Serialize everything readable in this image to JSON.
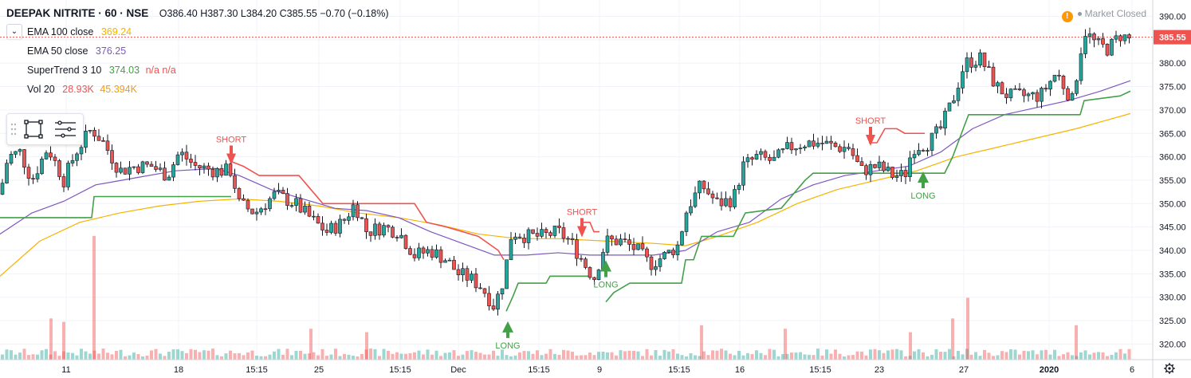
{
  "header": {
    "symbol": "DEEPAK NITRITE · 60 · NSE",
    "ohlc": "O386.40  H387.30  L384.20  C385.55  −0.70 (−0.18%)"
  },
  "status": {
    "text": "Market Closed",
    "color": "#ff9800"
  },
  "indicators": [
    {
      "label": "EMA 100 close",
      "value": "369.24",
      "color": "#f5b301"
    },
    {
      "label": "EMA 50 close",
      "value": "376.25",
      "color": "#7e57c2"
    },
    {
      "label": "SuperTrend 3 10",
      "value": "374.03",
      "extra": "n/a  n/a",
      "color": "#43a047",
      "extra_color": "#ef5350"
    },
    {
      "label": "Vol 20",
      "value": "28.93K",
      "extra": "45.394K",
      "color": "#ef5350",
      "extra_color": "#ff9800"
    }
  ],
  "toolbar": {
    "icons": [
      "grip-icon",
      "rectangle-icon",
      "list-icon"
    ]
  },
  "chart_data": {
    "type": "candlestick",
    "last_price": "385.55",
    "y_range": [
      317.5,
      392.5
    ],
    "y_ticks": [
      "390.00",
      "385.00",
      "380.00",
      "375.00",
      "370.00",
      "365.00",
      "360.00",
      "355.00",
      "350.00",
      "345.00",
      "340.00",
      "335.00",
      "330.00",
      "325.00",
      "320.00"
    ],
    "x_ticks": [
      "11",
      "18",
      "15:15",
      "25",
      "15:15",
      "Dec",
      "15:15",
      "9",
      "15:15",
      "16",
      "15:15",
      "23",
      "27",
      "2020",
      "6"
    ],
    "close_path": [
      [
        0,
        352
      ],
      [
        10,
        360
      ],
      [
        25,
        361
      ],
      [
        40,
        355
      ],
      [
        60,
        362
      ],
      [
        80,
        355
      ],
      [
        95,
        361
      ],
      [
        115,
        366
      ],
      [
        130,
        363
      ],
      [
        150,
        357
      ],
      [
        170,
        358
      ],
      [
        190,
        358
      ],
      [
        210,
        356
      ],
      [
        225,
        361
      ],
      [
        245,
        358
      ],
      [
        270,
        357
      ],
      [
        290,
        357
      ],
      [
        300,
        350
      ],
      [
        320,
        348
      ],
      [
        345,
        352
      ],
      [
        370,
        350
      ],
      [
        395,
        346
      ],
      [
        410,
        344
      ],
      [
        430,
        346
      ],
      [
        445,
        350
      ],
      [
        460,
        344
      ],
      [
        480,
        345
      ],
      [
        500,
        344
      ],
      [
        520,
        339
      ],
      [
        540,
        340
      ],
      [
        560,
        338
      ],
      [
        575,
        335
      ],
      [
        590,
        334
      ],
      [
        605,
        332
      ],
      [
        620,
        328
      ],
      [
        632,
        334
      ],
      [
        642,
        344
      ],
      [
        660,
        343
      ],
      [
        680,
        343
      ],
      [
        700,
        344
      ],
      [
        715,
        342
      ],
      [
        730,
        338
      ],
      [
        745,
        334
      ],
      [
        760,
        342
      ],
      [
        780,
        342
      ],
      [
        800,
        340
      ],
      [
        815,
        337
      ],
      [
        835,
        339
      ],
      [
        850,
        341
      ],
      [
        862,
        349
      ],
      [
        880,
        354
      ],
      [
        900,
        350
      ],
      [
        920,
        351
      ],
      [
        932,
        358
      ],
      [
        950,
        360
      ],
      [
        970,
        359
      ],
      [
        990,
        362
      ],
      [
        1010,
        363
      ],
      [
        1030,
        363
      ],
      [
        1050,
        362
      ],
      [
        1065,
        362
      ],
      [
        1080,
        357
      ],
      [
        1100,
        358
      ],
      [
        1120,
        356
      ],
      [
        1135,
        356
      ],
      [
        1145,
        362
      ],
      [
        1165,
        363
      ],
      [
        1180,
        366
      ],
      [
        1195,
        372
      ],
      [
        1210,
        380
      ],
      [
        1230,
        381
      ],
      [
        1250,
        375
      ],
      [
        1265,
        373
      ],
      [
        1285,
        373
      ],
      [
        1305,
        373
      ],
      [
        1325,
        378
      ],
      [
        1345,
        372
      ],
      [
        1360,
        387
      ],
      [
        1375,
        384
      ],
      [
        1390,
        383
      ],
      [
        1405,
        386
      ],
      [
        1418,
        385
      ]
    ],
    "volume_spikes": [
      [
        118,
        0.36
      ],
      [
        1214,
        0.18
      ],
      [
        64,
        0.12
      ],
      [
        80,
        0.11
      ],
      [
        390,
        0.09
      ],
      [
        460,
        0.08
      ],
      [
        880,
        0.1
      ],
      [
        985,
        0.09
      ],
      [
        1142,
        0.08
      ],
      [
        1195,
        0.12
      ],
      [
        1350,
        0.1
      ]
    ],
    "ema100": [
      [
        0,
        334.5
      ],
      [
        50,
        342
      ],
      [
        100,
        346
      ],
      [
        150,
        348
      ],
      [
        200,
        349.5
      ],
      [
        250,
        350.5
      ],
      [
        300,
        351
      ],
      [
        350,
        350.5
      ],
      [
        400,
        349.5
      ],
      [
        450,
        348
      ],
      [
        500,
        347
      ],
      [
        550,
        345.5
      ],
      [
        600,
        343.5
      ],
      [
        650,
        342.5
      ],
      [
        700,
        342.5
      ],
      [
        760,
        342
      ],
      [
        820,
        341.5
      ],
      [
        860,
        341
      ],
      [
        900,
        343
      ],
      [
        950,
        346
      ],
      [
        1000,
        350
      ],
      [
        1050,
        353
      ],
      [
        1100,
        355
      ],
      [
        1150,
        357
      ],
      [
        1200,
        360
      ],
      [
        1250,
        362
      ],
      [
        1300,
        364
      ],
      [
        1350,
        366
      ],
      [
        1418,
        369.24
      ]
    ],
    "ema50": [
      [
        0,
        343.5
      ],
      [
        40,
        348
      ],
      [
        80,
        350.5
      ],
      [
        120,
        354
      ],
      [
        170,
        355.5
      ],
      [
        220,
        357
      ],
      [
        270,
        357.5
      ],
      [
        300,
        356
      ],
      [
        340,
        353
      ],
      [
        380,
        351
      ],
      [
        420,
        349
      ],
      [
        460,
        348.5
      ],
      [
        500,
        347
      ],
      [
        540,
        344
      ],
      [
        580,
        341.5
      ],
      [
        620,
        339
      ],
      [
        660,
        339
      ],
      [
        700,
        339.5
      ],
      [
        740,
        339
      ],
      [
        780,
        339
      ],
      [
        820,
        339
      ],
      [
        860,
        340
      ],
      [
        900,
        344
      ],
      [
        940,
        346
      ],
      [
        980,
        351
      ],
      [
        1020,
        354
      ],
      [
        1060,
        356
      ],
      [
        1100,
        357
      ],
      [
        1140,
        358
      ],
      [
        1180,
        361
      ],
      [
        1220,
        366
      ],
      [
        1260,
        369
      ],
      [
        1300,
        370.5
      ],
      [
        1340,
        372
      ],
      [
        1380,
        374
      ],
      [
        1418,
        376.25
      ]
    ],
    "supertrend_down": [
      [
        290,
        359
      ],
      [
        305,
        358
      ],
      [
        325,
        356
      ],
      [
        375,
        356
      ],
      [
        385,
        354
      ],
      [
        405,
        350
      ],
      [
        410,
        350
      ],
      [
        520,
        350
      ],
      [
        535,
        346
      ],
      [
        560,
        345
      ],
      [
        580,
        344
      ],
      [
        600,
        343
      ],
      [
        625,
        340
      ],
      [
        632,
        338
      ]
    ],
    "supertrend_down2": [
      [
        730,
        346
      ],
      [
        740,
        346
      ],
      [
        745,
        344
      ],
      [
        752,
        344
      ]
    ],
    "supertrend_down3": [
      [
        1090,
        363
      ],
      [
        1100,
        363
      ],
      [
        1110,
        366
      ],
      [
        1125,
        366
      ],
      [
        1135,
        365
      ],
      [
        1160,
        365
      ]
    ],
    "supertrend_up": [
      [
        0,
        347
      ],
      [
        115,
        347
      ],
      [
        118,
        351.5
      ],
      [
        290,
        351.5
      ]
    ],
    "supertrend_up2": [
      [
        635,
        327
      ],
      [
        643,
        330
      ],
      [
        650,
        333
      ],
      [
        685,
        333
      ],
      [
        690,
        334.5
      ],
      [
        740,
        334.5
      ]
    ],
    "supertrend_up3": [
      [
        760,
        329
      ],
      [
        770,
        331
      ],
      [
        790,
        333
      ],
      [
        855,
        333
      ],
      [
        860,
        338
      ],
      [
        870,
        338
      ],
      [
        880,
        343
      ],
      [
        920,
        343
      ],
      [
        935,
        348
      ],
      [
        980,
        349
      ],
      [
        995,
        352
      ],
      [
        1010,
        355
      ],
      [
        1020,
        356.5
      ],
      [
        1090,
        356.5
      ],
      [
        1100,
        356.5
      ],
      [
        1160,
        356.5
      ],
      [
        1170,
        356.5
      ],
      [
        1185,
        356.5
      ],
      [
        1195,
        360
      ],
      [
        1215,
        369
      ],
      [
        1355,
        369
      ],
      [
        1360,
        372
      ],
      [
        1405,
        373
      ],
      [
        1418,
        374.03
      ]
    ],
    "signals": [
      {
        "label": "SHORT",
        "x": 290,
        "price": 359,
        "type": "short"
      },
      {
        "label": "SHORT",
        "x": 730,
        "price": 343.5,
        "type": "short"
      },
      {
        "label": "SHORT",
        "x": 1092,
        "price": 363,
        "type": "short"
      },
      {
        "label": "LONG",
        "x": 637,
        "price": 323.5,
        "type": "long"
      },
      {
        "label": "LONG",
        "x": 760,
        "price": 336.5,
        "type": "long"
      },
      {
        "label": "LONG",
        "x": 1158,
        "price": 355.5,
        "type": "long"
      }
    ]
  }
}
